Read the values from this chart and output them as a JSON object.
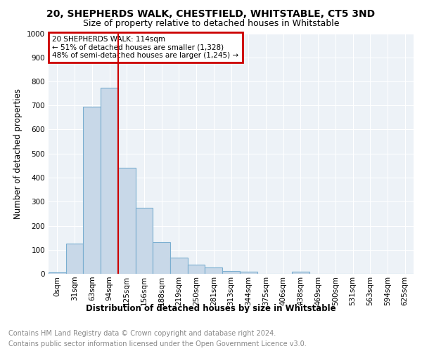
{
  "title": "20, SHEPHERDS WALK, CHESTFIELD, WHITSTABLE, CT5 3ND",
  "subtitle": "Size of property relative to detached houses in Whitstable",
  "xlabel": "Distribution of detached houses by size in Whitstable",
  "ylabel": "Number of detached properties",
  "annotation_line1": "20 SHEPHERDS WALK: 114sqm",
  "annotation_line2": "← 51% of detached houses are smaller (1,328)",
  "annotation_line3": "48% of semi-detached houses are larger (1,245) →",
  "categories": [
    "0sqm",
    "31sqm",
    "63sqm",
    "94sqm",
    "125sqm",
    "156sqm",
    "188sqm",
    "219sqm",
    "250sqm",
    "281sqm",
    "313sqm",
    "344sqm",
    "375sqm",
    "406sqm",
    "438sqm",
    "469sqm",
    "500sqm",
    "531sqm",
    "563sqm",
    "594sqm",
    "625sqm"
  ],
  "values": [
    5,
    125,
    695,
    775,
    440,
    275,
    130,
    68,
    38,
    25,
    12,
    10,
    0,
    0,
    10,
    0,
    0,
    0,
    0,
    0,
    0
  ],
  "bar_color": "#c8d8e8",
  "bar_edge_color": "#7aaed0",
  "vline_color": "#cc0000",
  "vline_x": 4.0,
  "ylim": [
    0,
    1000
  ],
  "yticks": [
    0,
    100,
    200,
    300,
    400,
    500,
    600,
    700,
    800,
    900,
    1000
  ],
  "annotation_box_color": "#cc0000",
  "background_color": "#edf2f7",
  "grid_color": "#ffffff",
  "title_fontsize": 10,
  "subtitle_fontsize": 9,
  "axis_label_fontsize": 8.5,
  "tick_fontsize": 7.5,
  "footer_fontsize": 7,
  "footer_line1": "Contains HM Land Registry data © Crown copyright and database right 2024.",
  "footer_line2": "Contains public sector information licensed under the Open Government Licence v3.0."
}
